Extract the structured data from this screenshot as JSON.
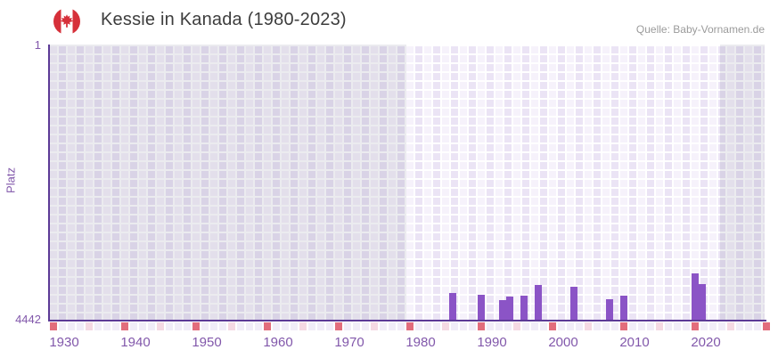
{
  "header": {
    "title": "Kessie in Kanada (1980-2023)",
    "source": "Quelle: Baby-Vornamen.de",
    "flag": "canada"
  },
  "chart_data": {
    "type": "bar",
    "title": "Kessie in Kanada (1980-2023)",
    "ylabel": "Platz",
    "y_axis": {
      "top_label": "1",
      "bottom_label": "4442",
      "min": 1,
      "max": 4442,
      "inverted": true,
      "note": "rank 1 is best (top), bars rise from rank 4442 baseline"
    },
    "x_axis": {
      "range": [
        1928,
        2028
      ],
      "ticks": [
        {
          "year": 1930,
          "label": "1930"
        },
        {
          "year": 1940,
          "label": "1940"
        },
        {
          "year": 1950,
          "label": "1950"
        },
        {
          "year": 1960,
          "label": "1960"
        },
        {
          "year": 1970,
          "label": "1970"
        },
        {
          "year": 1980,
          "label": "1980"
        },
        {
          "year": 1990,
          "label": "1990"
        },
        {
          "year": 2000,
          "label": "2000"
        },
        {
          "year": 2010,
          "label": "2010"
        },
        {
          "year": 2020,
          "label": "2020"
        }
      ]
    },
    "highlight_year_range": [
      1978,
      2022
    ],
    "points": [
      {
        "year": 1984,
        "rank": 3995
      },
      {
        "year": 1988,
        "rank": 4020
      },
      {
        "year": 1991,
        "rank": 4115
      },
      {
        "year": 1992,
        "rank": 4055
      },
      {
        "year": 1994,
        "rank": 4035
      },
      {
        "year": 1996,
        "rank": 3875
      },
      {
        "year": 2001,
        "rank": 3900
      },
      {
        "year": 2006,
        "rank": 4105
      },
      {
        "year": 2008,
        "rank": 4045
      },
      {
        "year": 2018,
        "rank": 3685
      },
      {
        "year": 2019,
        "rank": 3860
      }
    ],
    "tick_strip": {
      "description": "row of year cells under x-axis; red marker every 10 years from 1928, pink marker every 10 years from 1933",
      "red_years": [
        1928,
        1938,
        1948,
        1958,
        1968,
        1978,
        1988,
        1998,
        2008,
        2018,
        2028
      ],
      "pink_years": [
        1933,
        1943,
        1953,
        1963,
        1973,
        1983,
        1993,
        2003,
        2013,
        2023
      ]
    },
    "grid": "checkered",
    "legend": null,
    "colors": {
      "bar": "#8b54c6",
      "axis": "#5c3a96",
      "tick_label": "#8258ab",
      "title_text": "#3d3d3d",
      "source_text": "#9b9b9b",
      "grid_cell_light": "#f6f2fb",
      "grid_cell_dark": "#ebe4f5",
      "outside_overlay": "rgba(104,104,128,0.13)",
      "strip_light": "#f1edf8",
      "strip_pink": "#f5d9e3",
      "strip_red": "#e26d7c",
      "flag_red": "#d6303a"
    }
  }
}
